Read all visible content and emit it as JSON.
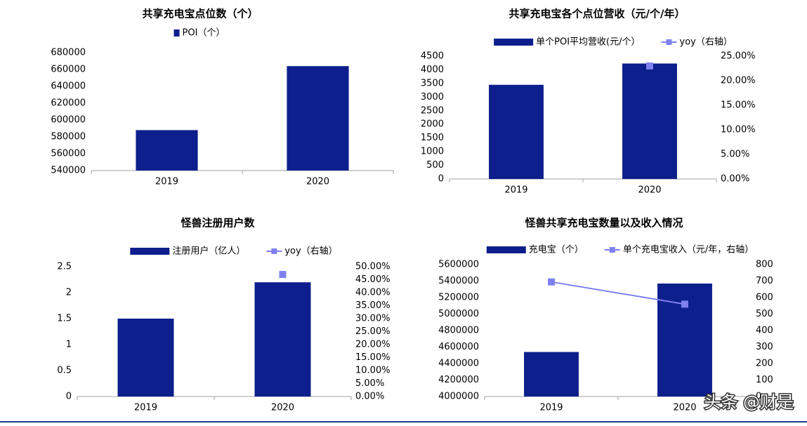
{
  "chart_data": [
    {
      "type": "bar",
      "title": "共享充电宝点位数（个）",
      "categories": [
        "2019",
        "2020"
      ],
      "series": [
        {
          "name": "POI（个）",
          "color": "#0d1f8c",
          "values": [
            588000,
            664000
          ]
        }
      ],
      "ylim": [
        540000,
        680000
      ],
      "yticks": [
        540000,
        560000,
        580000,
        600000,
        620000,
        640000,
        660000,
        680000
      ]
    },
    {
      "type": "bar-line",
      "title": "共享充电宝各个点位营收（元/个/年）",
      "categories": [
        "2019",
        "2020"
      ],
      "series": [
        {
          "name": "单个POI平均营收(元/个）",
          "color": "#0d1f8c",
          "values": [
            3450,
            4230
          ]
        },
        {
          "name": "yoy（右轴）",
          "color": "#7f80ef",
          "axis": "y2",
          "values": [
            null,
            23
          ]
        }
      ],
      "ylim": [
        0,
        4500
      ],
      "yticks": [
        0,
        500,
        1000,
        1500,
        2000,
        2500,
        3000,
        3500,
        4000,
        4500
      ],
      "y2lim": [
        0,
        25
      ],
      "y2ticks": [
        {
          "value": 0,
          "label": "0.00%"
        },
        {
          "value": 5,
          "label": "5.00%"
        },
        {
          "value": 10,
          "label": "10.00%"
        },
        {
          "value": 15,
          "label": "15.00%"
        },
        {
          "value": 20,
          "label": "20.00%"
        },
        {
          "value": 25,
          "label": "25.00%"
        }
      ]
    },
    {
      "type": "bar-line",
      "title": "怪兽注册用户数",
      "categories": [
        "2019",
        "2020"
      ],
      "series": [
        {
          "name": "注册用户（亿人）",
          "color": "#0d1f8c",
          "values": [
            1.5,
            2.2
          ]
        },
        {
          "name": "yoy（右轴）",
          "color": "#7f80ef",
          "axis": "y2",
          "values": [
            null,
            47
          ]
        }
      ],
      "ylim": [
        0,
        2.5
      ],
      "yticks": [
        0,
        0.5,
        1,
        1.5,
        2,
        2.5
      ],
      "y2lim": [
        0,
        50
      ],
      "y2ticks": [
        {
          "value": 0,
          "label": "0.00%"
        },
        {
          "value": 5,
          "label": "5.00%"
        },
        {
          "value": 10,
          "label": "10.00%"
        },
        {
          "value": 15,
          "label": "15.00%"
        },
        {
          "value": 20,
          "label": "20.00%"
        },
        {
          "value": 25,
          "label": "25.00%"
        },
        {
          "value": 30,
          "label": "30.00%"
        },
        {
          "value": 35,
          "label": "35.00%"
        },
        {
          "value": 40,
          "label": "40.00%"
        },
        {
          "value": 45,
          "label": "45.00%"
        },
        {
          "value": 50,
          "label": "50.00%"
        }
      ]
    },
    {
      "type": "bar-line",
      "title": "怪兽共享充电宝数量以及收入情况",
      "categories": [
        "2019",
        "2020"
      ],
      "series": [
        {
          "name": "充电宝（个）",
          "color": "#0d1f8c",
          "values": [
            4540000,
            5370000
          ]
        },
        {
          "name": "单个充电宝收入（元/年，右轴）",
          "color": "#7f80ef",
          "axis": "y2",
          "values": [
            695,
            560
          ]
        }
      ],
      "ylim": [
        4000000,
        5600000
      ],
      "yticks": [
        4000000,
        4200000,
        4400000,
        4600000,
        4800000,
        5000000,
        5200000,
        5400000,
        5600000
      ],
      "y2lim": [
        0,
        800
      ],
      "y2ticks": [
        0,
        100,
        200,
        300,
        400,
        500,
        600,
        700,
        800
      ]
    }
  ],
  "watermark": "头条 @财是"
}
